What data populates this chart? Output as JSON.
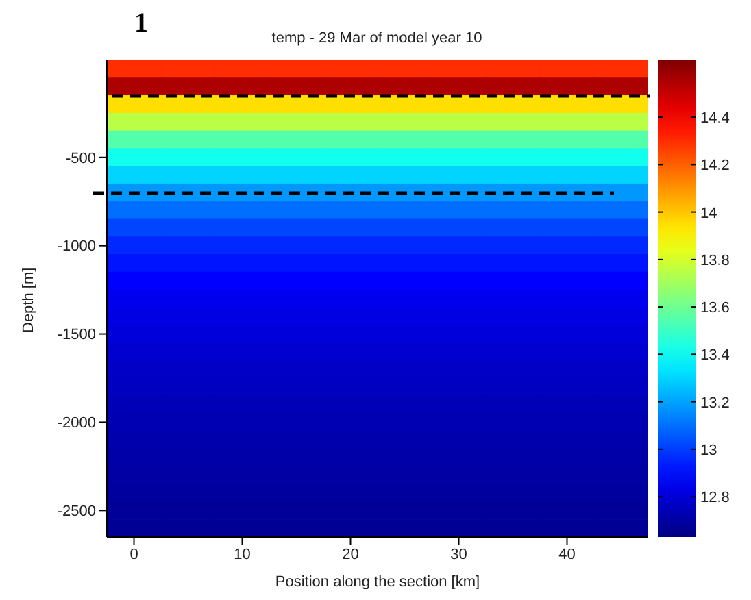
{
  "chart_data": {
    "type": "heatmap",
    "title": "temp - 29 Mar of model year 10",
    "xlabel": "Position along the section [km]",
    "ylabel": "Depth [m]",
    "annotations": [
      "1"
    ],
    "categories": [
      "0",
      null,
      "10",
      null,
      "20",
      null,
      "30",
      null,
      "40",
      null
    ],
    "y_categories": [
      null,
      null,
      null,
      null,
      null,
      "-500",
      null,
      null,
      null,
      null,
      "-1000",
      null,
      null,
      null,
      null,
      "-1500",
      null,
      null,
      null,
      null,
      "-2000",
      null,
      null,
      null,
      null,
      "-2500",
      null
    ],
    "cells": [
      [
        14.3,
        14.3,
        14.3,
        14.3,
        14.3,
        14.3,
        14.3,
        14.3,
        14.3,
        14.3
      ],
      [
        14.55,
        14.55,
        14.55,
        14.55,
        14.55,
        14.55,
        14.55,
        14.55,
        14.55,
        14.55
      ],
      [
        13.95,
        13.95,
        13.95,
        13.95,
        13.95,
        13.95,
        13.95,
        13.95,
        13.95,
        13.95
      ],
      [
        13.75,
        13.75,
        13.75,
        13.75,
        13.75,
        13.75,
        13.75,
        13.75,
        13.75,
        13.75
      ],
      [
        13.55,
        13.55,
        13.55,
        13.55,
        13.55,
        13.55,
        13.55,
        13.55,
        13.55,
        13.55
      ],
      [
        13.42,
        13.42,
        13.42,
        13.42,
        13.42,
        13.42,
        13.42,
        13.42,
        13.42,
        13.42
      ],
      [
        13.3,
        13.3,
        13.3,
        13.3,
        13.3,
        13.3,
        13.3,
        13.3,
        13.3,
        13.3
      ],
      [
        13.18,
        13.18,
        13.18,
        13.18,
        13.18,
        13.18,
        13.18,
        13.18,
        13.18,
        13.18
      ],
      [
        13.1,
        13.1,
        13.1,
        13.1,
        13.1,
        13.1,
        13.1,
        13.1,
        13.1,
        13.1
      ],
      [
        13.02,
        13.02,
        13.02,
        13.02,
        13.02,
        13.02,
        13.02,
        13.02,
        13.02,
        13.02
      ],
      [
        12.96,
        12.96,
        12.96,
        12.96,
        12.96,
        12.96,
        12.96,
        12.96,
        12.96,
        12.96
      ],
      [
        12.92,
        12.92,
        12.92,
        12.92,
        12.92,
        12.92,
        12.92,
        12.92,
        12.92,
        12.92
      ],
      [
        12.88,
        12.88,
        12.88,
        12.88,
        12.88,
        12.88,
        12.88,
        12.88,
        12.88,
        12.88
      ],
      [
        12.85,
        12.85,
        12.85,
        12.85,
        12.85,
        12.85,
        12.85,
        12.85,
        12.85,
        12.85
      ],
      [
        12.83,
        12.83,
        12.83,
        12.83,
        12.83,
        12.83,
        12.83,
        12.83,
        12.83,
        12.83
      ],
      [
        12.81,
        12.81,
        12.81,
        12.81,
        12.81,
        12.81,
        12.81,
        12.81,
        12.81,
        12.81
      ],
      [
        12.79,
        12.79,
        12.79,
        12.79,
        12.79,
        12.79,
        12.79,
        12.79,
        12.79,
        12.79
      ],
      [
        12.77,
        12.77,
        12.77,
        12.77,
        12.77,
        12.77,
        12.77,
        12.77,
        12.77,
        12.77
      ],
      [
        12.76,
        12.76,
        12.76,
        12.76,
        12.76,
        12.76,
        12.76,
        12.76,
        12.76,
        12.76
      ],
      [
        12.74,
        12.74,
        12.74,
        12.74,
        12.74,
        12.74,
        12.74,
        12.74,
        12.74,
        12.74
      ],
      [
        12.73,
        12.73,
        12.73,
        12.73,
        12.73,
        12.73,
        12.73,
        12.73,
        12.73,
        12.73
      ],
      [
        12.72,
        12.72,
        12.72,
        12.72,
        12.72,
        12.72,
        12.72,
        12.72,
        12.72,
        12.72
      ],
      [
        12.71,
        12.71,
        12.71,
        12.71,
        12.71,
        12.71,
        12.71,
        12.71,
        12.71,
        12.71
      ],
      [
        12.7,
        12.7,
        12.7,
        12.7,
        12.7,
        12.7,
        12.7,
        12.7,
        12.7,
        12.7
      ],
      [
        12.69,
        12.69,
        12.69,
        12.69,
        12.69,
        12.69,
        12.69,
        12.69,
        12.69,
        12.69
      ],
      [
        12.68,
        12.68,
        12.68,
        12.68,
        12.68,
        12.68,
        12.68,
        12.68,
        12.68,
        12.68
      ],
      [
        12.67,
        12.67,
        12.67,
        12.67,
        12.67,
        12.67,
        12.67,
        12.67,
        12.67,
        12.67
      ]
    ],
    "clim": [
      12.63,
      14.64
    ],
    "cticks": [
      12.8,
      13,
      13.2,
      13.4,
      13.6,
      13.8,
      14,
      14.2,
      14.4
    ]
  }
}
